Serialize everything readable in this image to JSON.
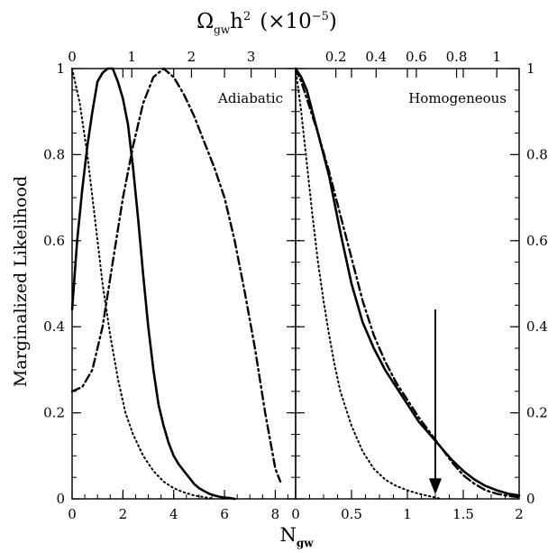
{
  "figure": {
    "top_title_main": "Ω",
    "top_title_sub": "gw",
    "top_title_h": "h",
    "top_title_exp": "2",
    "top_title_factor": "(×10",
    "top_title_factor_exp": "−5",
    "top_title_close": ")",
    "bottom_title_main": "N",
    "bottom_title_sub": "gw",
    "ylabel": "Marginalized Likelihood"
  },
  "chart_data": [
    {
      "type": "line",
      "panel_label": "Adiabatic",
      "xlim": [
        0,
        8.8
      ],
      "ylim": [
        0,
        1
      ],
      "x_ticks": [
        "0",
        "2",
        "4",
        "6",
        "8"
      ],
      "x_tick_values": [
        0,
        2,
        4,
        6,
        8
      ],
      "y_ticks": [
        "0",
        "0.2",
        "0.4",
        "0.6",
        "0.8",
        "1"
      ],
      "y_tick_values": [
        0,
        0.2,
        0.4,
        0.6,
        0.8,
        1
      ],
      "top_ticks": [
        "0",
        "1",
        "2",
        "3"
      ],
      "top_tick_values_in_x": [
        0,
        2.35,
        4.7,
        7.05
      ],
      "series": [
        {
          "style": "solid",
          "x": [
            0,
            0.2,
            0.4,
            0.6,
            0.8,
            1.0,
            1.2,
            1.4,
            1.6,
            1.8,
            2.0,
            2.2,
            2.4,
            2.6,
            2.8,
            3.0,
            3.2,
            3.4,
            3.6,
            3.8,
            4.0,
            4.2,
            4.4,
            4.6,
            4.8,
            5.0,
            5.2,
            5.4,
            5.6,
            5.8,
            6.0,
            6.2,
            6.4
          ],
          "y": [
            0.44,
            0.6,
            0.72,
            0.82,
            0.9,
            0.97,
            0.99,
            1.0,
            1.0,
            0.97,
            0.93,
            0.87,
            0.77,
            0.65,
            0.52,
            0.4,
            0.3,
            0.22,
            0.17,
            0.13,
            0.1,
            0.08,
            0.065,
            0.05,
            0.035,
            0.025,
            0.018,
            0.012,
            0.008,
            0.005,
            0.003,
            0.002,
            0.0
          ]
        },
        {
          "style": "dashdot",
          "x": [
            0,
            0.4,
            0.8,
            1.2,
            1.6,
            2.0,
            2.4,
            2.8,
            3.2,
            3.6,
            4.0,
            4.4,
            4.8,
            5.2,
            5.6,
            6.0,
            6.4,
            6.8,
            7.2,
            7.6,
            8.0,
            8.2
          ],
          "y": [
            0.25,
            0.26,
            0.3,
            0.4,
            0.55,
            0.7,
            0.82,
            0.92,
            0.98,
            1.0,
            0.98,
            0.94,
            0.89,
            0.83,
            0.77,
            0.7,
            0.6,
            0.48,
            0.35,
            0.2,
            0.07,
            0.04
          ]
        },
        {
          "style": "dotted",
          "x": [
            0,
            0.3,
            0.6,
            0.9,
            1.2,
            1.5,
            1.8,
            2.1,
            2.4,
            2.8,
            3.2,
            3.6,
            4.0,
            4.4,
            4.8,
            5.2,
            5.6
          ],
          "y": [
            1.0,
            0.92,
            0.8,
            0.65,
            0.5,
            0.38,
            0.28,
            0.2,
            0.15,
            0.1,
            0.065,
            0.04,
            0.025,
            0.015,
            0.008,
            0.004,
            0.0
          ]
        }
      ]
    },
    {
      "type": "line",
      "panel_label": "Homogeneous",
      "xlim": [
        0,
        2
      ],
      "ylim": [
        0,
        1
      ],
      "x_ticks": [
        "0",
        "0.5",
        "1",
        "1.5",
        "2"
      ],
      "x_tick_values": [
        0,
        0.5,
        1,
        1.5,
        2
      ],
      "y_ticks": [
        "0",
        "0.2",
        "0.4",
        "0.6",
        "0.8",
        "1"
      ],
      "y_tick_values": [
        0,
        0.2,
        0.4,
        0.6,
        0.8,
        1
      ],
      "top_ticks": [
        "0.2",
        "0.4",
        "0.6",
        "0.8",
        "1"
      ],
      "top_tick_values_in_x": [
        0.36,
        0.72,
        1.08,
        1.44,
        1.8
      ],
      "series": [
        {
          "style": "solid",
          "x": [
            0,
            0.05,
            0.1,
            0.15,
            0.2,
            0.3,
            0.4,
            0.5,
            0.6,
            0.7,
            0.8,
            0.9,
            1.0,
            1.1,
            1.2,
            1.3,
            1.4,
            1.5,
            1.6,
            1.7,
            1.8,
            1.9,
            2.0
          ],
          "y": [
            1.0,
            0.98,
            0.95,
            0.9,
            0.85,
            0.75,
            0.62,
            0.5,
            0.41,
            0.35,
            0.3,
            0.26,
            0.22,
            0.18,
            0.15,
            0.12,
            0.09,
            0.065,
            0.045,
            0.03,
            0.02,
            0.012,
            0.008
          ]
        },
        {
          "style": "dashdot",
          "x": [
            0,
            0.05,
            0.1,
            0.15,
            0.2,
            0.3,
            0.4,
            0.5,
            0.6,
            0.7,
            0.8,
            0.9,
            1.0,
            1.1,
            1.2,
            1.3,
            1.4,
            1.5,
            1.6,
            1.7,
            1.8,
            1.9,
            2.0
          ],
          "y": [
            1.0,
            0.97,
            0.93,
            0.89,
            0.85,
            0.76,
            0.66,
            0.56,
            0.46,
            0.38,
            0.32,
            0.27,
            0.23,
            0.19,
            0.155,
            0.12,
            0.085,
            0.055,
            0.035,
            0.02,
            0.012,
            0.007,
            0.004
          ]
        },
        {
          "style": "dotted",
          "x": [
            0,
            0.05,
            0.1,
            0.15,
            0.2,
            0.25,
            0.3,
            0.35,
            0.4,
            0.5,
            0.6,
            0.7,
            0.8,
            0.9,
            1.0,
            1.1,
            1.2,
            1.3
          ],
          "y": [
            1.0,
            0.9,
            0.78,
            0.66,
            0.55,
            0.46,
            0.38,
            0.31,
            0.25,
            0.17,
            0.11,
            0.07,
            0.045,
            0.03,
            0.02,
            0.012,
            0.006,
            0.0
          ]
        }
      ],
      "annotation": {
        "type": "arrow",
        "x": 1.25,
        "y_from": 0.44,
        "y_to": 0.01
      }
    }
  ]
}
